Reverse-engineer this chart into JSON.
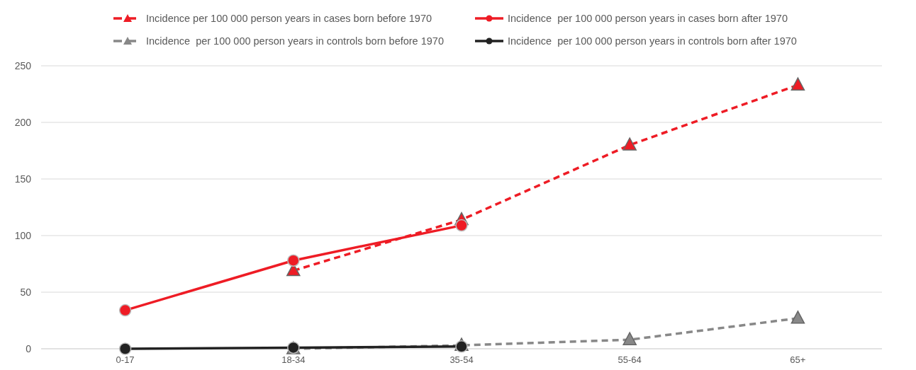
{
  "chart_data": {
    "type": "line",
    "categories": [
      "0-17",
      "18-34",
      "35-54",
      "55-64",
      "65+"
    ],
    "series": [
      {
        "name": "Incidence per 100 000 person years in cases born before 1970",
        "color": "#ee1c25",
        "marker": "triangle",
        "line_style": "dashed",
        "values": [
          null,
          69,
          114,
          180,
          233
        ]
      },
      {
        "name": "Incidence  per 100 000 person years in cases born after 1970",
        "color": "#ee1c25",
        "marker": "circle",
        "line_style": "solid",
        "values": [
          34,
          78,
          109,
          null,
          null
        ]
      },
      {
        "name": "Incidence  per 100 000 person years in controls born before 1970",
        "color": "#888888",
        "marker": "triangle",
        "line_style": "dashed",
        "values": [
          null,
          0,
          3,
          8,
          27
        ]
      },
      {
        "name": "Incidence  per 100 000 person years in controls born after 1970",
        "color": "#222222",
        "marker": "circle",
        "line_style": "solid",
        "values": [
          0,
          1,
          2,
          null,
          null
        ]
      }
    ],
    "ylim": [
      0,
      250
    ],
    "yticks": [
      0,
      50,
      100,
      150,
      200,
      250
    ],
    "grid": "y",
    "legend": "top"
  }
}
